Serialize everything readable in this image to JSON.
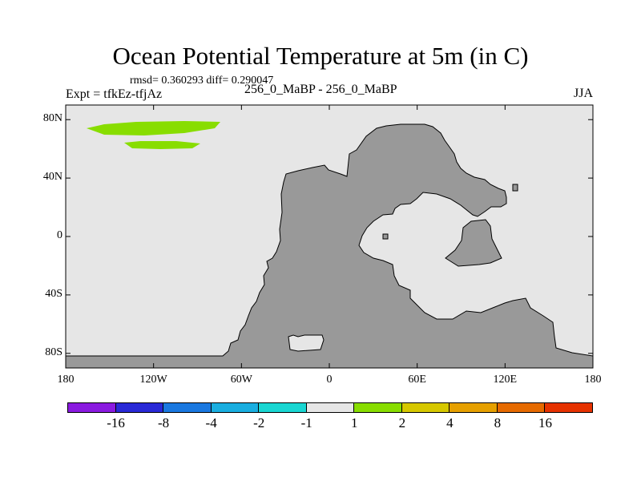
{
  "title": "Ocean Potential Temperature at 5m (in C)",
  "stats": "rmsd= 0.360293 diff= 0.290047",
  "left_label": "Expt = tfkEz-tfjAz",
  "center_label": "256_0_MaBP - 256_0_MaBP",
  "right_label": "JJA",
  "map": {
    "projection": "cylindrical-equidistant",
    "lon_range": [
      -180,
      180
    ],
    "lat_range": [
      -90,
      90
    ],
    "ocean_color": "#e6e6e6",
    "land_color": "#999999",
    "anomaly_color": "#88dd00"
  },
  "y_ticks": [
    {
      "label": "80N",
      "lat": 80
    },
    {
      "label": "40N",
      "lat": 40
    },
    {
      "label": "0",
      "lat": 0
    },
    {
      "label": "40S",
      "lat": -40
    },
    {
      "label": "80S",
      "lat": -80
    }
  ],
  "x_ticks": [
    {
      "label": "180",
      "lon": -180
    },
    {
      "label": "120W",
      "lon": -120
    },
    {
      "label": "60W",
      "lon": -60
    },
    {
      "label": "0",
      "lon": 0
    },
    {
      "label": "60E",
      "lon": 60
    },
    {
      "label": "120E",
      "lon": 120
    },
    {
      "label": "180",
      "lon": 180
    }
  ],
  "colorbar": {
    "colors": [
      "#8a1ae0",
      "#2929d6",
      "#1a78e0",
      "#19aee0",
      "#19d6d2",
      "#e6e6e6",
      "#88dd00",
      "#d6c800",
      "#e6a000",
      "#e66a00",
      "#e63200"
    ],
    "labels": [
      "-16",
      "-8",
      "-4",
      "-2",
      "-1",
      "1",
      "2",
      "4",
      "8",
      "16"
    ]
  }
}
